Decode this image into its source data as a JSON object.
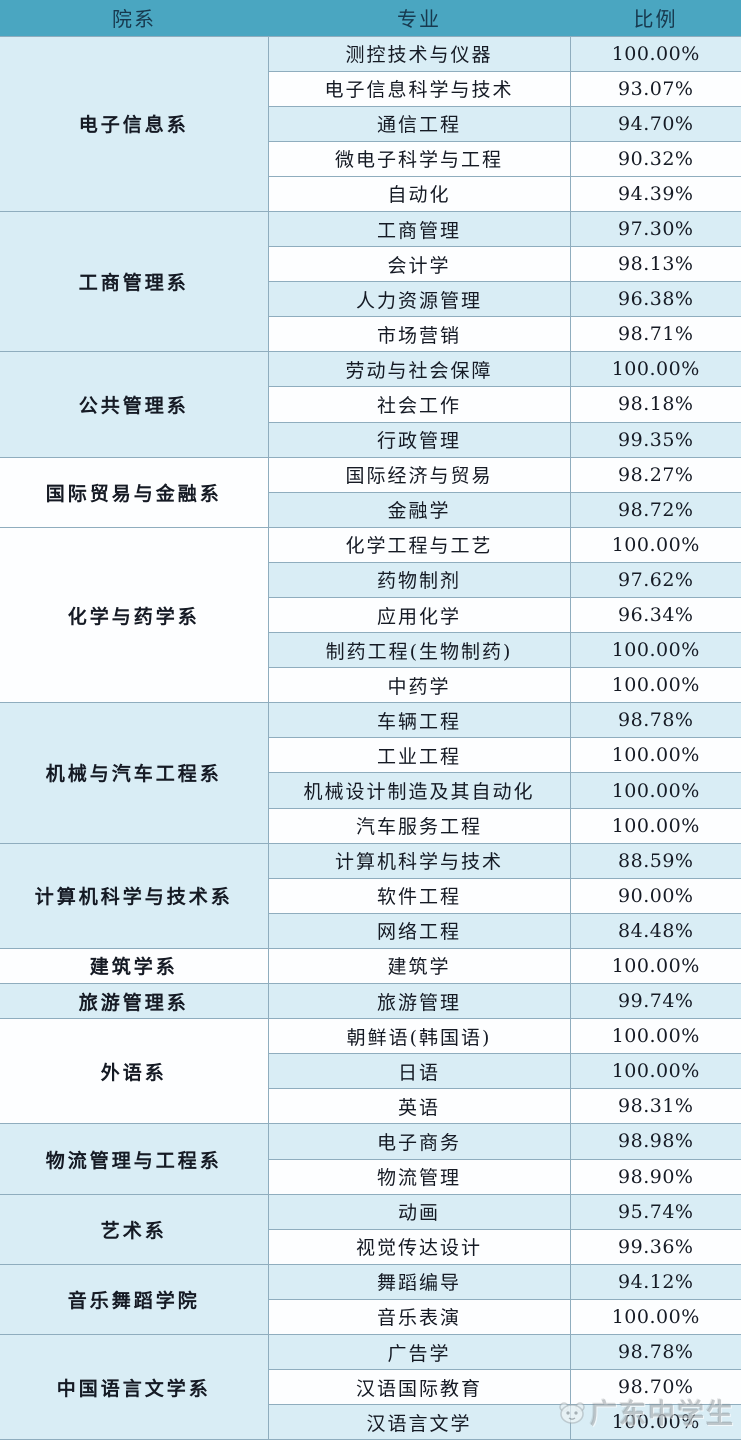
{
  "table": {
    "headers": [
      "院系",
      "专业",
      "比例"
    ],
    "groups": [
      {
        "department": "电子信息系",
        "majors": [
          {
            "name": "测控技术与仪器",
            "rate": "100.00%",
            "shaded": true
          },
          {
            "name": "电子信息科学与技术",
            "rate": "93.07%",
            "shaded": false
          },
          {
            "name": "通信工程",
            "rate": "94.70%",
            "shaded": true
          },
          {
            "name": "微电子科学与工程",
            "rate": "90.32%",
            "shaded": false
          },
          {
            "name": "自动化",
            "rate": "94.39%",
            "shaded": false
          }
        ]
      },
      {
        "department": "工商管理系",
        "majors": [
          {
            "name": "工商管理",
            "rate": "97.30%",
            "shaded": true
          },
          {
            "name": "会计学",
            "rate": "98.13%",
            "shaded": false
          },
          {
            "name": "人力资源管理",
            "rate": "96.38%",
            "shaded": true
          },
          {
            "name": "市场营销",
            "rate": "98.71%",
            "shaded": false
          }
        ]
      },
      {
        "department": "公共管理系",
        "majors": [
          {
            "name": "劳动与社会保障",
            "rate": "100.00%",
            "shaded": true
          },
          {
            "name": "社会工作",
            "rate": "98.18%",
            "shaded": false
          },
          {
            "name": "行政管理",
            "rate": "99.35%",
            "shaded": true
          }
        ]
      },
      {
        "department": "国际贸易与金融系",
        "majors": [
          {
            "name": "国际经济与贸易",
            "rate": "98.27%",
            "shaded": false
          },
          {
            "name": "金融学",
            "rate": "98.72%",
            "shaded": true
          }
        ]
      },
      {
        "department": "化学与药学系",
        "majors": [
          {
            "name": "化学工程与工艺",
            "rate": "100.00%",
            "shaded": false
          },
          {
            "name": "药物制剂",
            "rate": "97.62%",
            "shaded": true
          },
          {
            "name": "应用化学",
            "rate": "96.34%",
            "shaded": false
          },
          {
            "name": "制药工程(生物制药)",
            "rate": "100.00%",
            "shaded": true
          },
          {
            "name": "中药学",
            "rate": "100.00%",
            "shaded": false
          }
        ]
      },
      {
        "department": "机械与汽车工程系",
        "majors": [
          {
            "name": "车辆工程",
            "rate": "98.78%",
            "shaded": true
          },
          {
            "name": "工业工程",
            "rate": "100.00%",
            "shaded": false
          },
          {
            "name": "机械设计制造及其自动化",
            "rate": "100.00%",
            "shaded": true
          },
          {
            "name": "汽车服务工程",
            "rate": "100.00%",
            "shaded": false
          }
        ]
      },
      {
        "department": "计算机科学与技术系",
        "majors": [
          {
            "name": "计算机科学与技术",
            "rate": "88.59%",
            "shaded": true
          },
          {
            "name": "软件工程",
            "rate": "90.00%",
            "shaded": false
          },
          {
            "name": "网络工程",
            "rate": "84.48%",
            "shaded": true
          }
        ]
      },
      {
        "department": "建筑学系",
        "majors": [
          {
            "name": "建筑学",
            "rate": "100.00%",
            "shaded": false
          }
        ]
      },
      {
        "department": "旅游管理系",
        "majors": [
          {
            "name": "旅游管理",
            "rate": "99.74%",
            "shaded": true
          }
        ]
      },
      {
        "department": "外语系",
        "majors": [
          {
            "name": "朝鲜语(韩国语)",
            "rate": "100.00%",
            "shaded": false
          },
          {
            "name": "日语",
            "rate": "100.00%",
            "shaded": true
          },
          {
            "name": "英语",
            "rate": "98.31%",
            "shaded": false
          }
        ]
      },
      {
        "department": "物流管理与工程系",
        "majors": [
          {
            "name": "电子商务",
            "rate": "98.98%",
            "shaded": true
          },
          {
            "name": "物流管理",
            "rate": "98.90%",
            "shaded": false
          }
        ]
      },
      {
        "department": "艺术系",
        "majors": [
          {
            "name": "动画",
            "rate": "95.74%",
            "shaded": true
          },
          {
            "name": "视觉传达设计",
            "rate": "99.36%",
            "shaded": false
          }
        ]
      },
      {
        "department": "音乐舞蹈学院",
        "majors": [
          {
            "name": "舞蹈编导",
            "rate": "94.12%",
            "shaded": true
          },
          {
            "name": "音乐表演",
            "rate": "100.00%",
            "shaded": false
          }
        ]
      },
      {
        "department": "中国语言文学系",
        "majors": [
          {
            "name": "广告学",
            "rate": "98.78%",
            "shaded": true
          },
          {
            "name": "汉语国际教育",
            "rate": "98.70%",
            "shaded": false
          },
          {
            "name": "汉语言文学",
            "rate": "100.00%",
            "shaded": true
          }
        ]
      }
    ]
  },
  "watermark": {
    "text": "广东中学生",
    "icon": "mascot-face-icon"
  },
  "colors": {
    "header_bg": "#4aa6c1",
    "header_text": "#17394e",
    "shaded_row": "#d9edf5",
    "plain_row": "#fdfeff",
    "gridline": "#8fadbe",
    "body_text": "#151a24"
  }
}
